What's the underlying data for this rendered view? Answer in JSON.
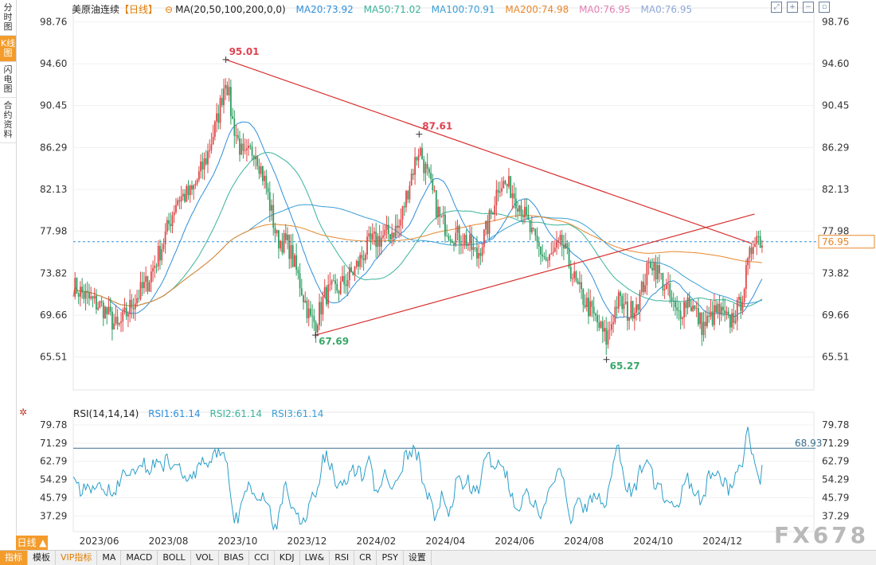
{
  "sidebar": {
    "items": [
      {
        "label": "分时图",
        "active": false
      },
      {
        "label": "K线图",
        "active": true
      },
      {
        "label": "闪电图",
        "active": false
      },
      {
        "label": "合约资料",
        "active": false
      }
    ]
  },
  "legend": {
    "title": "美原油连续",
    "period": "【日线】",
    "ma_params": "MA(20,50,100,200,0,0)",
    "items": [
      {
        "label": "MA20:73.92",
        "color": "#2f8fdc"
      },
      {
        "label": "MA50:71.02",
        "color": "#3ab39a"
      },
      {
        "label": "MA100:70.91",
        "color": "#3a9fd6"
      },
      {
        "label": "MA200:74.98",
        "color": "#e8872a"
      },
      {
        "label": "MA0:76.95",
        "color": "#e37fb4"
      },
      {
        "label": "MA0:76.95",
        "color": "#8fa8d8"
      }
    ]
  },
  "rsi_legend": {
    "title": "RSI(14,14,14)",
    "items": [
      {
        "label": "RSI1:61.14",
        "color": "#2f8fdc"
      },
      {
        "label": "RSI2:61.14",
        "color": "#3ab39a"
      },
      {
        "label": "RSI3:61.14",
        "color": "#3a9fd6"
      }
    ]
  },
  "period_tab": "日线 ▲",
  "bottom_tabs": [
    {
      "label": "指标",
      "active": true
    },
    {
      "label": "模板",
      "active": false
    },
    {
      "label": "VIP指标",
      "active": false,
      "vip": true
    },
    {
      "label": "MA",
      "active": false
    },
    {
      "label": "MACD",
      "active": false
    },
    {
      "label": "BOLL",
      "active": false
    },
    {
      "label": "VOL",
      "active": false
    },
    {
      "label": "BIAS",
      "active": false
    },
    {
      "label": "CCI",
      "active": false
    },
    {
      "label": "KDJ",
      "active": false
    },
    {
      "label": "LW&",
      "active": false
    },
    {
      "label": "RSI",
      "active": false
    },
    {
      "label": "CR",
      "active": false
    },
    {
      "label": "PSY",
      "active": false
    },
    {
      "label": "设置",
      "active": false
    }
  ],
  "watermark": "FX678",
  "chart_data": [
    {
      "type": "candlestick",
      "title": "美原油连续",
      "y_ticks": [
        65.51,
        69.66,
        73.82,
        77.98,
        82.13,
        86.29,
        90.45,
        94.6,
        98.76
      ],
      "ylim": [
        63.2,
        99.5
      ],
      "x_ticks": [
        "2023/06",
        "2023/08",
        "2023/10",
        "2023/12",
        "2024/02",
        "2024/04",
        "2024/06",
        "2024/08",
        "2024/10",
        "2024/12"
      ],
      "last_price": 76.95,
      "annotations": [
        {
          "label": "95.01",
          "x": 0.206,
          "value": 95.01,
          "color": "#e0424f"
        },
        {
          "label": "87.61",
          "x": 0.467,
          "value": 87.61,
          "color": "#e0424f"
        },
        {
          "label": "67.69",
          "x": 0.327,
          "value": 67.69,
          "color": "#3aa86a"
        },
        {
          "label": "65.27",
          "x": 0.72,
          "value": 65.27,
          "color": "#3aa86a"
        }
      ],
      "trend_lines": [
        {
          "from": [
            0.206,
            95.01
          ],
          "to": [
            0.915,
            76.8
          ],
          "color": "#d83030"
        },
        {
          "from": [
            0.327,
            67.69
          ],
          "to": [
            0.92,
            79.7
          ],
          "color": "#d83030"
        }
      ],
      "close_anchors": [
        [
          0.0,
          72.6
        ],
        [
          0.02,
          71.3
        ],
        [
          0.04,
          70.4
        ],
        [
          0.06,
          68.3
        ],
        [
          0.08,
          70.9
        ],
        [
          0.1,
          72.9
        ],
        [
          0.12,
          76.6
        ],
        [
          0.14,
          81.2
        ],
        [
          0.16,
          81.8
        ],
        [
          0.18,
          85.3
        ],
        [
          0.195,
          89.2
        ],
        [
          0.206,
          93.4
        ],
        [
          0.215,
          88.9
        ],
        [
          0.23,
          85.0
        ],
        [
          0.245,
          86.3
        ],
        [
          0.26,
          82.5
        ],
        [
          0.275,
          77.2
        ],
        [
          0.29,
          76.7
        ],
        [
          0.305,
          73.1
        ],
        [
          0.32,
          69.2
        ],
        [
          0.327,
          68.9
        ],
        [
          0.34,
          71.7
        ],
        [
          0.36,
          72.4
        ],
        [
          0.38,
          74.2
        ],
        [
          0.4,
          76.8
        ],
        [
          0.42,
          77.5
        ],
        [
          0.44,
          78.4
        ],
        [
          0.455,
          83.2
        ],
        [
          0.467,
          86.3
        ],
        [
          0.48,
          83.0
        ],
        [
          0.495,
          79.2
        ],
        [
          0.51,
          77.8
        ],
        [
          0.53,
          77.2
        ],
        [
          0.545,
          75.5
        ],
        [
          0.56,
          78.6
        ],
        [
          0.575,
          82.9
        ],
        [
          0.59,
          82.3
        ],
        [
          0.605,
          80.4
        ],
        [
          0.62,
          77.4
        ],
        [
          0.64,
          74.9
        ],
        [
          0.66,
          76.8
        ],
        [
          0.68,
          72.4
        ],
        [
          0.7,
          69.9
        ],
        [
          0.72,
          67.2
        ],
        [
          0.735,
          71.2
        ],
        [
          0.75,
          69.8
        ],
        [
          0.765,
          71.5
        ],
        [
          0.78,
          75.2
        ],
        [
          0.8,
          72.4
        ],
        [
          0.815,
          69.6
        ],
        [
          0.83,
          71.3
        ],
        [
          0.85,
          68.5
        ],
        [
          0.87,
          70.1
        ],
        [
          0.885,
          68.9
        ],
        [
          0.9,
          70.6
        ],
        [
          0.91,
          74.2
        ],
        [
          0.92,
          77.8
        ],
        [
          0.93,
          76.95
        ]
      ]
    },
    {
      "type": "line",
      "title": "RSI(14,14,14)",
      "y_ticks": [
        37.29,
        45.79,
        54.29,
        62.79,
        71.29,
        79.78
      ],
      "ylim": [
        30,
        82
      ],
      "reference_line": 68.93,
      "series": [
        {
          "name": "RSI1",
          "last": 61.14,
          "color": "#2a9fc9"
        }
      ]
    }
  ]
}
